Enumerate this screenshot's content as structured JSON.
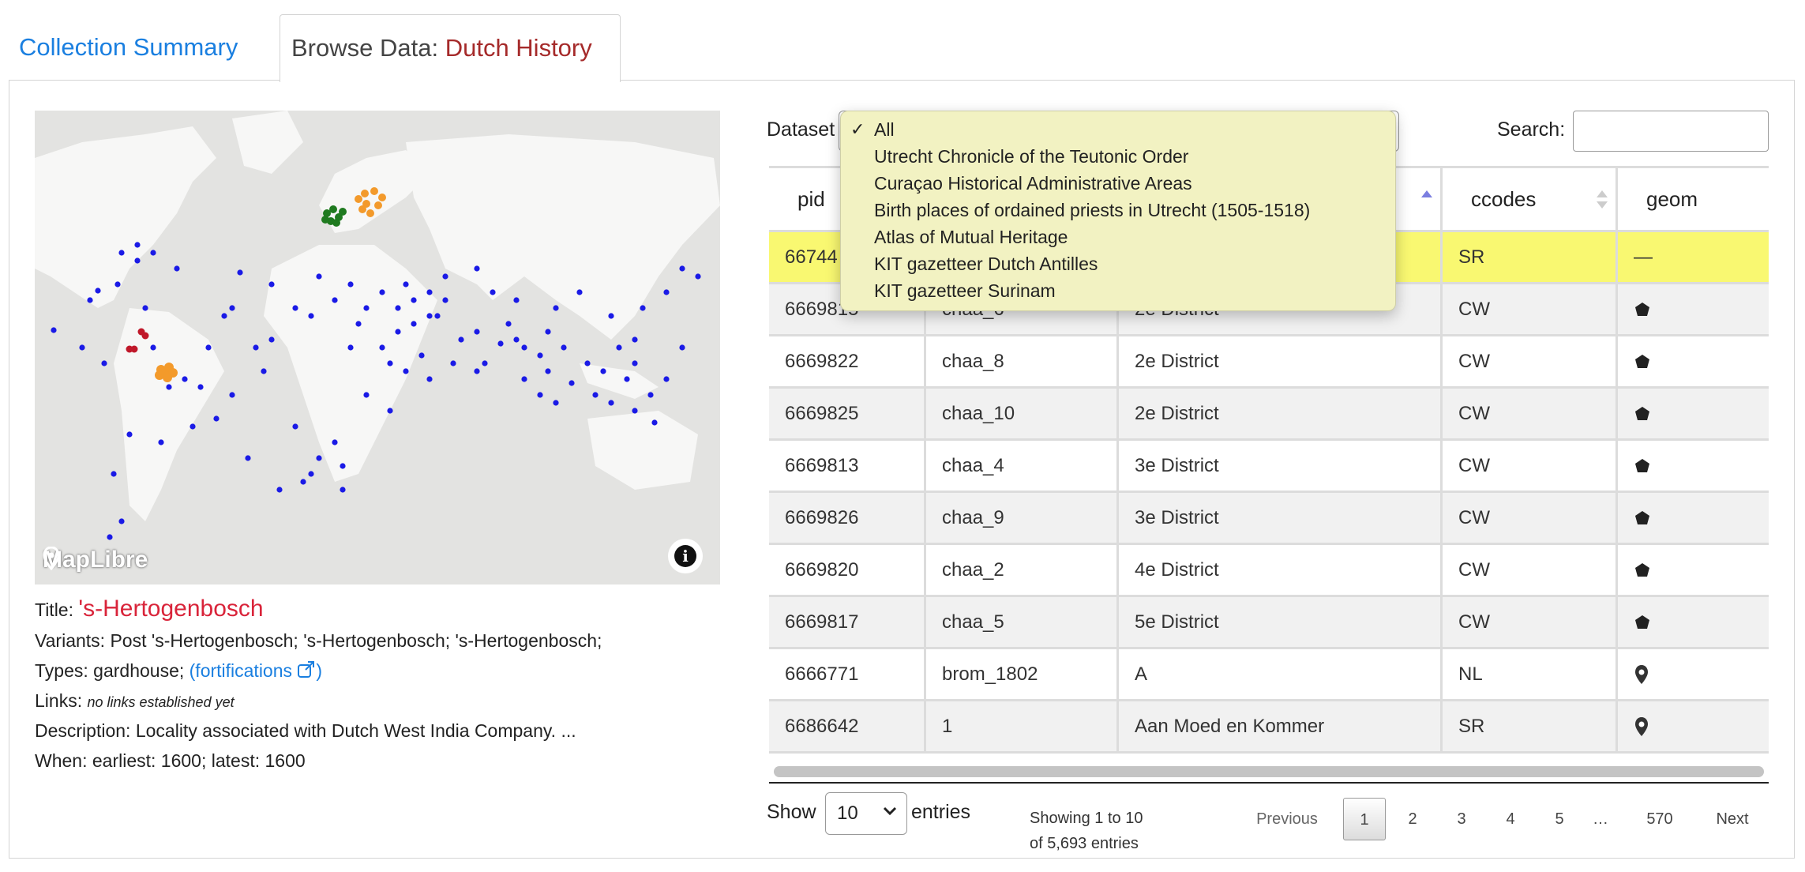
{
  "tabs": {
    "summary_label": "Collection Summary",
    "browse_prefix": "Browse Data: ",
    "browse_collection": "Dutch History"
  },
  "map": {
    "attribution": "MapLibre",
    "info_icon": "info-icon",
    "marker_colors": {
      "primary": "#1a1ae6",
      "orange": "#f39a2b",
      "green": "#1f7a1f",
      "red": "#c0182a"
    }
  },
  "details": {
    "title_label": "Title:",
    "title_value": "'s-Hertogenbosch",
    "variants_label": "Variants:",
    "variants_value": "Post 's-Hertogenbosch; 's-Hertogenbosch; 's-Hertogenbosch;",
    "types_label": "Types:",
    "types_value": "gardhouse;",
    "types_link": "(fortifications",
    "types_link_close": ")",
    "links_label": "Links:",
    "links_value": "no links established yet",
    "description_label": "Description:",
    "description_value": "Locality associated with Dutch West India Company. ...",
    "when_label": "When:",
    "when_value": "earliest: 1600; latest: 1600"
  },
  "controls": {
    "dataset_label": "Dataset",
    "search_label": "Search:",
    "search_value": ""
  },
  "dropdown": {
    "checkmark": "✓",
    "options": [
      "All",
      "Utrecht Chronicle of the Teutonic Order",
      "Curaçao Historical Administrative Areas",
      "Birth places of ordained priests in Utrecht (1505-1518)",
      "Atlas of Mutual Heritage",
      "KIT gazetteer Dutch Antilles",
      "KIT gazetteer Surinam"
    ],
    "selected": "All"
  },
  "table": {
    "headers": {
      "pid": "pid",
      "ccodes": "ccodes",
      "geom": "geom"
    },
    "rows": [
      {
        "pid": "66744",
        "src": "",
        "title": "",
        "cc": "SR",
        "geom": "—"
      },
      {
        "pid": "6669815",
        "src": "chaa_6",
        "title": "2e District",
        "cc": "CW",
        "geom": "polygon-icon"
      },
      {
        "pid": "6669822",
        "src": "chaa_8",
        "title": "2e District",
        "cc": "CW",
        "geom": "polygon-icon"
      },
      {
        "pid": "6669825",
        "src": "chaa_10",
        "title": "2e District",
        "cc": "CW",
        "geom": "polygon-icon"
      },
      {
        "pid": "6669813",
        "src": "chaa_4",
        "title": "3e District",
        "cc": "CW",
        "geom": "polygon-icon"
      },
      {
        "pid": "6669826",
        "src": "chaa_9",
        "title": "3e District",
        "cc": "CW",
        "geom": "polygon-icon"
      },
      {
        "pid": "6669820",
        "src": "chaa_2",
        "title": "4e District",
        "cc": "CW",
        "geom": "polygon-icon"
      },
      {
        "pid": "6669817",
        "src": "chaa_5",
        "title": "5e District",
        "cc": "CW",
        "geom": "polygon-icon"
      },
      {
        "pid": "6666771",
        "src": "brom_1802",
        "title": "A",
        "cc": "NL",
        "geom": "map-pin-icon"
      },
      {
        "pid": "6686642",
        "src": "1",
        "title": "Aan Moed en Kommer",
        "cc": "SR",
        "geom": "map-pin-icon"
      }
    ]
  },
  "footer": {
    "show_label": "Show",
    "page_size": "10",
    "entries_label": "entries",
    "info_line1": "Showing 1 to 10",
    "info_line2": "of 5,693 entries",
    "previous": "Previous",
    "pages": [
      "1",
      "2",
      "3",
      "4",
      "5",
      "…",
      "570"
    ],
    "current_page": "1",
    "next": "Next"
  }
}
